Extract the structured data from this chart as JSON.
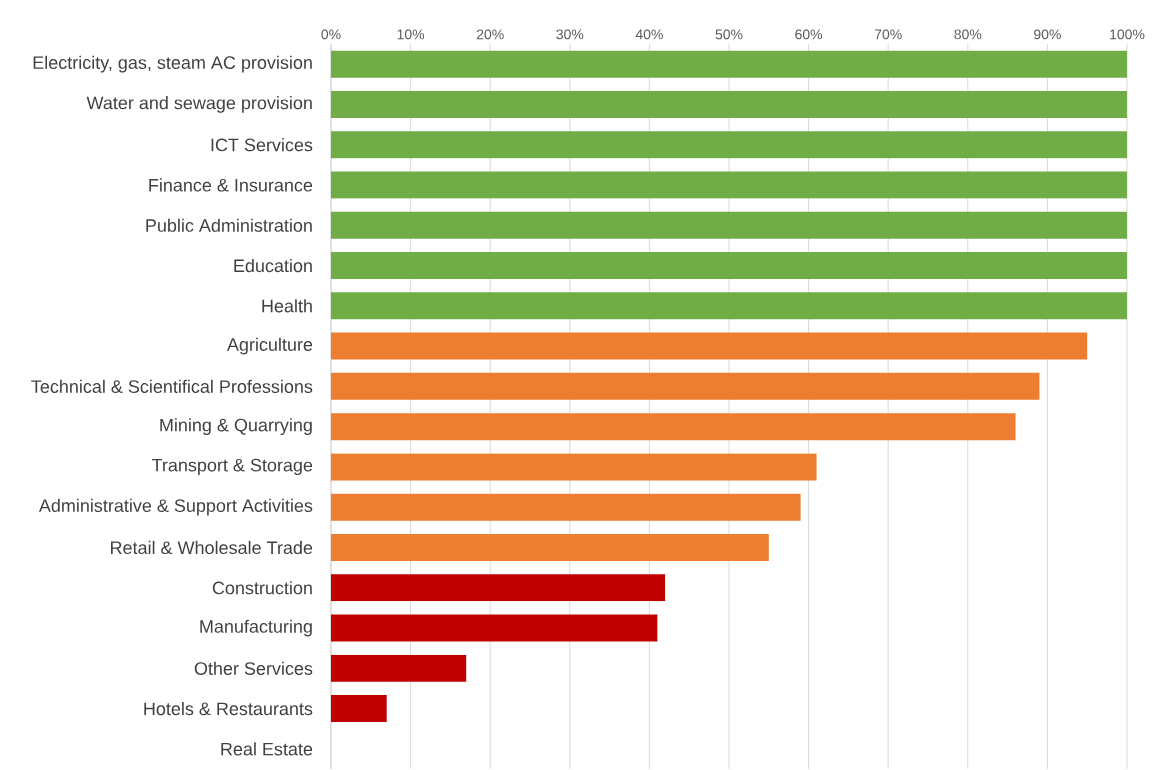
{
  "chart_data": {
    "type": "bar",
    "orientation": "horizontal",
    "grid": "x",
    "categories": [
      "Electricity, gas, steam AC provision",
      "Water and sewage provision",
      "ICT Services",
      "Finance & Insurance",
      "Public Administration",
      "Education",
      "Health",
      "Agriculture",
      "Technical & Scientifical Professions",
      "Mining & Quarrying",
      "Transport & Storage",
      "Administrative & Support Activities",
      "Retail & Wholesale Trade",
      "Construction",
      "Manufacturing",
      "Other Services",
      "Hotels & Restaurants",
      "Real Estate"
    ],
    "values": [
      100,
      100,
      100,
      100,
      100,
      100,
      100,
      95,
      89,
      86,
      61,
      59,
      55,
      42,
      41,
      17,
      7,
      0
    ],
    "colors": [
      "#70ad47",
      "#70ad47",
      "#70ad47",
      "#70ad47",
      "#70ad47",
      "#70ad47",
      "#70ad47",
      "#ed7d31",
      "#ed7d31",
      "#ed7d31",
      "#ed7d31",
      "#ed7d31",
      "#ed7d31",
      "#c00000",
      "#c00000",
      "#c00000",
      "#c00000",
      "#c00000"
    ],
    "xlim": [
      0,
      100
    ],
    "xticks": [
      {
        "value": 0,
        "label": "0%"
      },
      {
        "value": 10,
        "label": "10%"
      },
      {
        "value": 20,
        "label": "20%"
      },
      {
        "value": 30,
        "label": "30%"
      },
      {
        "value": 40,
        "label": "40%"
      },
      {
        "value": 50,
        "label": "50%"
      },
      {
        "value": 60,
        "label": "60%"
      },
      {
        "value": 70,
        "label": "70%"
      },
      {
        "value": 80,
        "label": "80%"
      },
      {
        "value": 90,
        "label": "90%"
      },
      {
        "value": 100,
        "label": "100%"
      }
    ]
  }
}
